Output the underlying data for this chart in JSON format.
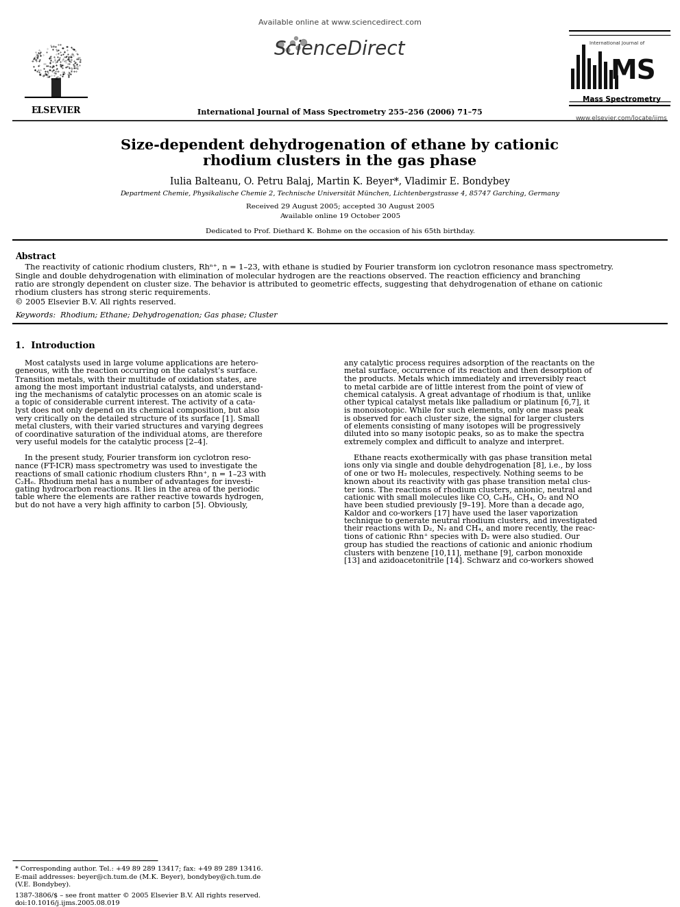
{
  "title_line1": "Size-dependent dehydrogenation of ethane by cationic",
  "title_line2": "rhodium clusters in the gas phase",
  "authors": "Iulia Balteanu, O. Petru Balaj, Martin K. Beyer*, Vladimir E. Bondybey",
  "affiliation": "Department Chemie, Physikalische Chemie 2, Technische Universität München, Lichtenbergstrasse 4, 85747 Garching, Germany",
  "received": "Received 29 August 2005; accepted 30 August 2005",
  "available": "Available online 19 October 2005",
  "dedicated": "Dedicated to Prof. Diethard K. Bohme on the occasion of his 65th birthday.",
  "journal": "International Journal of Mass Spectrometry 255–256 (2006) 71–75",
  "url_top": "Available online at www.sciencedirect.com",
  "sciencedirect": "ScienceDirect",
  "elsevier_url": "www.elsevier.com/locate/ijms",
  "elsevier_text": "ELSEVIER",
  "mass_spec": "Mass Spectrometry",
  "abstract_title": "Abstract",
  "keywords_line": "Keywords:  Rhodium; Ethane; Dehydrogenation; Gas phase; Cluster",
  "section1_title": "1.  Introduction",
  "footnote_corresponding": "* Corresponding author. Tel.: +49 89 289 13417; fax: +49 89 289 13416.",
  "footnote_email": "E-mail addresses: beyer@ch.tum.de (M.K. Beyer), bondybey@ch.tum.de",
  "footnote_email2": "(V.E. Bondybey).",
  "footnote_issn": "1387-3806/$ – see front matter © 2005 Elsevier B.V. All rights reserved.",
  "footnote_doi": "doi:10.1016/j.ijms.2005.08.019",
  "bg_color": "#ffffff",
  "text_color": "#000000"
}
